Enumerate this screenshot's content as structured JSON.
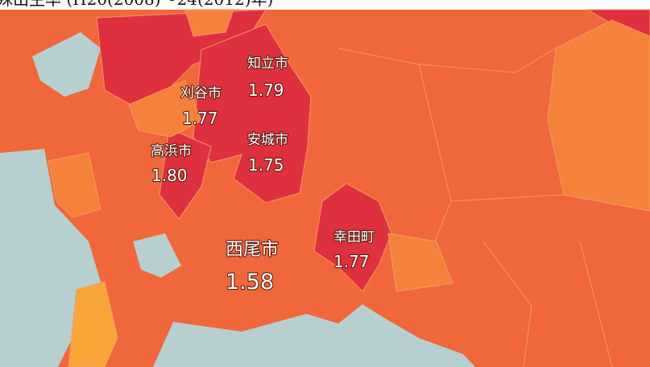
{
  "title": "殊出生率 (H20(2008)～24(2012)年)",
  "regions": [
    {
      "name": "知立市",
      "value": "1.79"
    },
    {
      "name": "刈谷市",
      "value": "1.77"
    },
    {
      "name": "安城市",
      "value": "1.75"
    },
    {
      "name": "高浜市",
      "value": "1.80"
    },
    {
      "name": "西尾市",
      "value": "1.58"
    },
    {
      "name": "幸田町",
      "value": "1.77"
    }
  ]
}
